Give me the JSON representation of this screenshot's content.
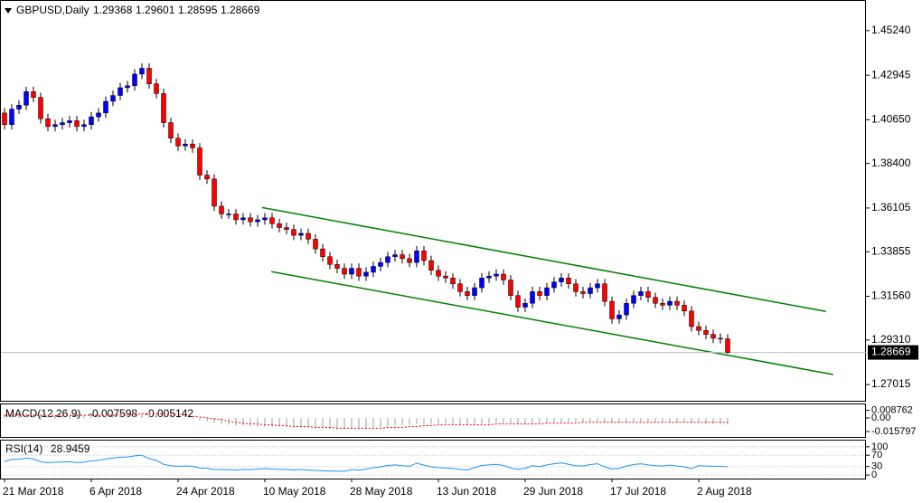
{
  "chart_data": [
    {
      "type": "candlestick",
      "title": "GBPUSD,Daily",
      "categories": [
        "21 Mar 2018",
        null,
        null,
        null,
        null,
        null,
        null,
        null,
        null,
        null,
        null,
        null,
        "6 Apr 2018",
        null,
        null,
        null,
        null,
        null,
        null,
        null,
        null,
        null,
        null,
        null,
        "24 Apr 2018",
        null,
        null,
        null,
        null,
        null,
        null,
        null,
        null,
        null,
        null,
        null,
        "10 May 2018",
        null,
        null,
        null,
        null,
        null,
        null,
        null,
        null,
        null,
        null,
        null,
        "28 May 2018",
        null,
        null,
        null,
        null,
        null,
        null,
        null,
        null,
        null,
        null,
        null,
        "13 Jun 2018",
        null,
        null,
        null,
        null,
        null,
        null,
        null,
        null,
        null,
        null,
        null,
        "29 Jun 2018",
        null,
        null,
        null,
        null,
        null,
        null,
        null,
        null,
        null,
        null,
        null,
        "17 Jul 2018",
        null,
        null,
        null,
        null,
        null,
        null,
        null,
        null,
        null,
        null,
        null,
        "2 Aug 2018",
        null,
        null,
        null,
        null
      ],
      "open": [
        1.41,
        1.404,
        1.412,
        1.414,
        1.421,
        1.418,
        1.407,
        1.403,
        1.404,
        1.405,
        1.406,
        1.403,
        1.404,
        1.408,
        1.41,
        1.416,
        1.419,
        1.423,
        1.424,
        1.43,
        1.433,
        1.425,
        1.42,
        1.405,
        1.397,
        1.393,
        1.394,
        1.392,
        1.378,
        1.376,
        1.362,
        1.358,
        1.358,
        1.355,
        1.356,
        1.354,
        1.355,
        1.356,
        1.353,
        1.351,
        1.35,
        1.347,
        1.348,
        1.345,
        1.34,
        1.336,
        1.332,
        1.33,
        1.327,
        1.33,
        1.326,
        1.328,
        1.331,
        1.333,
        1.336,
        1.337,
        1.335,
        1.333,
        1.339,
        1.334,
        1.329,
        1.326,
        1.325,
        1.322,
        1.318,
        1.316,
        1.32,
        1.325,
        1.326,
        1.327,
        1.324,
        1.316,
        1.31,
        1.312,
        1.318,
        1.316,
        1.32,
        1.323,
        1.325,
        1.322,
        1.318,
        1.317,
        1.32,
        1.322,
        1.313,
        1.304,
        1.306,
        1.312,
        1.316,
        1.318,
        1.315,
        1.312,
        1.311,
        1.313,
        1.311,
        1.308,
        1.3,
        1.298,
        1.296,
        1.294,
        1.29368
      ],
      "high": [
        1.4125,
        1.4145,
        1.4165,
        1.4235,
        1.4235,
        1.4205,
        1.4095,
        1.4065,
        1.4075,
        1.4085,
        1.4085,
        1.4065,
        1.4105,
        1.4125,
        1.4185,
        1.4215,
        1.4255,
        1.4265,
        1.4325,
        1.4355,
        1.4355,
        1.4275,
        1.4225,
        1.4075,
        1.3995,
        1.3965,
        1.3965,
        1.3945,
        1.3805,
        1.3785,
        1.3645,
        1.3605,
        1.3605,
        1.3585,
        1.3585,
        1.3575,
        1.3585,
        1.3585,
        1.3555,
        1.3535,
        1.3525,
        1.3505,
        1.3505,
        1.3475,
        1.3425,
        1.3385,
        1.3345,
        1.3325,
        1.3325,
        1.3325,
        1.3305,
        1.3335,
        1.3355,
        1.3385,
        1.3395,
        1.3395,
        1.3375,
        1.3415,
        1.3415,
        1.3365,
        1.3315,
        1.3285,
        1.3275,
        1.3245,
        1.3205,
        1.3225,
        1.3275,
        1.3285,
        1.3295,
        1.3295,
        1.3265,
        1.3185,
        1.3145,
        1.3205,
        1.3205,
        1.3225,
        1.3255,
        1.3275,
        1.3275,
        1.3245,
        1.3205,
        1.3225,
        1.3245,
        1.3245,
        1.3155,
        1.3085,
        1.3145,
        1.3185,
        1.3205,
        1.3205,
        1.3175,
        1.3145,
        1.3155,
        1.3155,
        1.3135,
        1.3105,
        1.3025,
        1.3005,
        1.2985,
        1.2965,
        1.29601
      ],
      "low": [
        1.4015,
        1.4015,
        1.4095,
        1.4115,
        1.4155,
        1.4045,
        1.4005,
        1.4005,
        1.4015,
        1.4025,
        1.4005,
        1.4005,
        1.4015,
        1.4055,
        1.4075,
        1.4135,
        1.4165,
        1.4205,
        1.4215,
        1.4275,
        1.4225,
        1.4175,
        1.4025,
        1.3945,
        1.3905,
        1.3905,
        1.3895,
        1.3755,
        1.3735,
        1.3595,
        1.3555,
        1.3555,
        1.3525,
        1.3525,
        1.3515,
        1.3515,
        1.3525,
        1.3505,
        1.3485,
        1.3475,
        1.3445,
        1.3445,
        1.3425,
        1.3375,
        1.3335,
        1.3295,
        1.3275,
        1.3245,
        1.3245,
        1.3235,
        1.3235,
        1.3255,
        1.3285,
        1.3305,
        1.3335,
        1.3325,
        1.3305,
        1.3305,
        1.3315,
        1.3265,
        1.3235,
        1.3225,
        1.3195,
        1.3155,
        1.3135,
        1.3135,
        1.3175,
        1.3225,
        1.3235,
        1.3215,
        1.3135,
        1.3075,
        1.3075,
        1.3095,
        1.3135,
        1.3135,
        1.3175,
        1.3205,
        1.3195,
        1.3155,
        1.3145,
        1.3145,
        1.3175,
        1.3105,
        1.3015,
        1.3015,
        1.3035,
        1.3095,
        1.3135,
        1.3125,
        1.3095,
        1.3085,
        1.3085,
        1.3085,
        1.3055,
        1.2975,
        1.2955,
        1.2935,
        1.2915,
        1.2912,
        1.28595
      ],
      "close": [
        1.404,
        1.412,
        1.414,
        1.421,
        1.418,
        1.407,
        1.403,
        1.404,
        1.405,
        1.406,
        1.403,
        1.404,
        1.408,
        1.41,
        1.416,
        1.419,
        1.423,
        1.424,
        1.43,
        1.433,
        1.425,
        1.42,
        1.405,
        1.397,
        1.393,
        1.394,
        1.392,
        1.378,
        1.376,
        1.362,
        1.358,
        1.358,
        1.355,
        1.356,
        1.354,
        1.355,
        1.356,
        1.353,
        1.351,
        1.35,
        1.347,
        1.348,
        1.345,
        1.34,
        1.336,
        1.332,
        1.33,
        1.327,
        1.33,
        1.326,
        1.328,
        1.331,
        1.333,
        1.336,
        1.337,
        1.335,
        1.333,
        1.339,
        1.334,
        1.329,
        1.326,
        1.325,
        1.322,
        1.318,
        1.316,
        1.32,
        1.325,
        1.326,
        1.327,
        1.324,
        1.316,
        1.31,
        1.312,
        1.318,
        1.316,
        1.32,
        1.323,
        1.325,
        1.322,
        1.318,
        1.317,
        1.32,
        1.322,
        1.313,
        1.304,
        1.306,
        1.312,
        1.316,
        1.318,
        1.315,
        1.312,
        1.311,
        1.313,
        1.311,
        1.308,
        1.3,
        1.298,
        1.296,
        1.294,
        1.29368,
        1.28669
      ],
      "up_color": "#0000ff",
      "down_color": "#ff0000",
      "ylim": [
        1.2618,
        1.4677
      ],
      "yticks": [
        {
          "value": 1.4524,
          "label": "1.45240"
        },
        {
          "value": 1.42945,
          "label": "1.42945"
        },
        {
          "value": 1.4065,
          "label": "1.40650"
        },
        {
          "value": 1.384,
          "label": "1.38400"
        },
        {
          "value": 1.36105,
          "label": "1.36105"
        },
        {
          "value": 1.33855,
          "label": "1.33855"
        },
        {
          "value": 1.3156,
          "label": "1.31560"
        },
        {
          "value": 1.2931,
          "label": "1.29310"
        },
        {
          "value": 1.27015,
          "label": "1.27015"
        }
      ],
      "trendlines": [
        {
          "color": "#008000",
          "x": [
            35.6,
            113.6
          ],
          "y": [
            1.3613,
            1.3078
          ]
        },
        {
          "color": "#008000",
          "x": [
            36.9,
            114.6
          ],
          "y": [
            1.3283,
            1.2753
          ]
        }
      ]
    },
    {
      "type": "macd",
      "title": "MACD(12,26,9)",
      "values": [
        0.004,
        0.004,
        0.004,
        0.005,
        0.005,
        0.004,
        0.004,
        0.003,
        0.003,
        0.003,
        0.003,
        0.003,
        0.003,
        0.003,
        0.004,
        0.004,
        0.005,
        0.005,
        0.006,
        0.006,
        0.006,
        0.005,
        0.004,
        0.002,
        0.001,
        0.0,
        -0.001,
        -0.003,
        -0.004,
        -0.006,
        -0.007,
        -0.008,
        -0.009,
        -0.009,
        -0.01,
        -0.01,
        -0.01,
        -0.01,
        -0.01,
        -0.011,
        -0.011,
        -0.011,
        -0.011,
        -0.012,
        -0.012,
        -0.013,
        -0.013,
        -0.013,
        -0.013,
        -0.013,
        -0.012,
        -0.012,
        -0.011,
        -0.01,
        -0.009,
        -0.009,
        -0.008,
        -0.007,
        -0.007,
        -0.007,
        -0.007,
        -0.007,
        -0.008,
        -0.008,
        -0.008,
        -0.008,
        -0.007,
        -0.007,
        -0.006,
        -0.006,
        -0.006,
        -0.007,
        -0.007,
        -0.007,
        -0.006,
        -0.006,
        -0.005,
        -0.005,
        -0.005,
        -0.005,
        -0.005,
        -0.005,
        -0.005,
        -0.005,
        -0.006,
        -0.006,
        -0.006,
        -0.005,
        -0.005,
        -0.005,
        -0.005,
        -0.005,
        -0.005,
        -0.005,
        -0.005,
        -0.006,
        -0.006,
        -0.007,
        -0.007,
        -0.007,
        -0.007598
      ],
      "signal": [
        0.003,
        0.003,
        0.003,
        0.003,
        0.003,
        0.003,
        0.003,
        0.003,
        0.003,
        0.003,
        0.003,
        0.003,
        0.003,
        0.003,
        0.003,
        0.003,
        0.004,
        0.004,
        0.004,
        0.005,
        0.005,
        0.005,
        0.005,
        0.004,
        0.004,
        0.003,
        0.002,
        0.001,
        0.0,
        -0.001,
        -0.002,
        -0.004,
        -0.005,
        -0.006,
        -0.007,
        -0.007,
        -0.008,
        -0.008,
        -0.009,
        -0.009,
        -0.01,
        -0.01,
        -0.01,
        -0.011,
        -0.011,
        -0.011,
        -0.012,
        -0.012,
        -0.012,
        -0.012,
        -0.012,
        -0.012,
        -0.012,
        -0.011,
        -0.011,
        -0.011,
        -0.01,
        -0.01,
        -0.009,
        -0.009,
        -0.008,
        -0.008,
        -0.008,
        -0.008,
        -0.008,
        -0.008,
        -0.008,
        -0.008,
        -0.007,
        -0.007,
        -0.007,
        -0.007,
        -0.007,
        -0.007,
        -0.007,
        -0.006,
        -0.006,
        -0.006,
        -0.006,
        -0.006,
        -0.005,
        -0.005,
        -0.005,
        -0.005,
        -0.005,
        -0.005,
        -0.005,
        -0.005,
        -0.005,
        -0.005,
        -0.005,
        -0.005,
        -0.005,
        -0.005,
        -0.005,
        -0.005,
        -0.005,
        -0.005,
        -0.005,
        -0.005,
        -0.005142
      ],
      "color": "#c0c0c0",
      "signal_color": "#ff0000",
      "ylim": [
        -0.0221,
        0.0158
      ],
      "yticks": [
        0.008762,
        {
          "value": 0,
          "label": "0.00"
        },
        -0.015797
      ]
    },
    {
      "type": "line",
      "title": "RSI(14)",
      "values": [
        48,
        55,
        56,
        60,
        57,
        47,
        44,
        45,
        46,
        47,
        44,
        45,
        50,
        52,
        57,
        60,
        63,
        64,
        68,
        70,
        58,
        52,
        38,
        33,
        31,
        32,
        31,
        25,
        24,
        20,
        19,
        19,
        18,
        20,
        19,
        21,
        23,
        21,
        20,
        20,
        18,
        20,
        18,
        16,
        15,
        14,
        14,
        13,
        20,
        17,
        21,
        26,
        29,
        34,
        36,
        33,
        31,
        42,
        35,
        29,
        26,
        25,
        23,
        20,
        18,
        26,
        34,
        36,
        38,
        34,
        25,
        20,
        24,
        33,
        30,
        36,
        40,
        43,
        38,
        33,
        32,
        37,
        40,
        29,
        21,
        24,
        32,
        37,
        40,
        36,
        33,
        32,
        35,
        32,
        29,
        23,
        33,
        32,
        31,
        31,
        28.9459
      ],
      "color": "#1e90ff",
      "ylim": [
        -12.5,
        121.9
      ],
      "yticks": [
        100,
        70,
        30,
        0
      ]
    }
  ]
}
